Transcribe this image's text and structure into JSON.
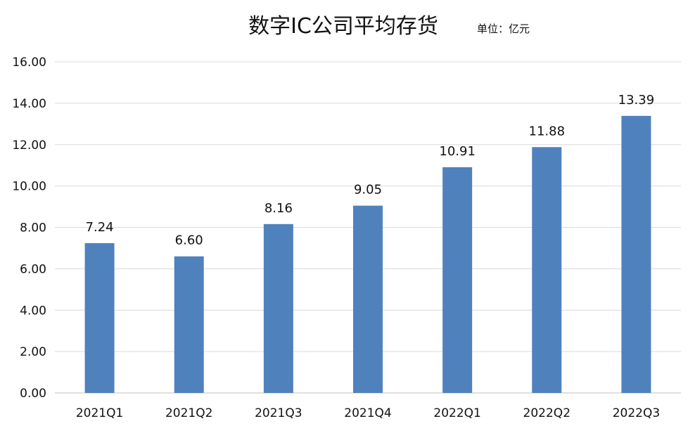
{
  "chart_data": {
    "type": "bar",
    "title": "数字IC公司平均存货",
    "unit_note": "单位：亿元",
    "categories": [
      "2021Q1",
      "2021Q2",
      "2021Q3",
      "2021Q4",
      "2022Q1",
      "2022Q2",
      "2022Q3"
    ],
    "values": [
      7.24,
      6.6,
      8.16,
      9.05,
      10.91,
      11.88,
      13.39
    ],
    "value_labels": [
      "7.24",
      "6.60",
      "8.16",
      "9.05",
      "10.91",
      "11.88",
      "13.39"
    ],
    "ylim": [
      0,
      16
    ],
    "yticks": [
      "0.00",
      "2.00",
      "4.00",
      "6.00",
      "8.00",
      "10.00",
      "12.00",
      "14.00",
      "16.00"
    ],
    "grid": true,
    "bar_color": "#4f81bd",
    "xlabel": "",
    "ylabel": ""
  }
}
